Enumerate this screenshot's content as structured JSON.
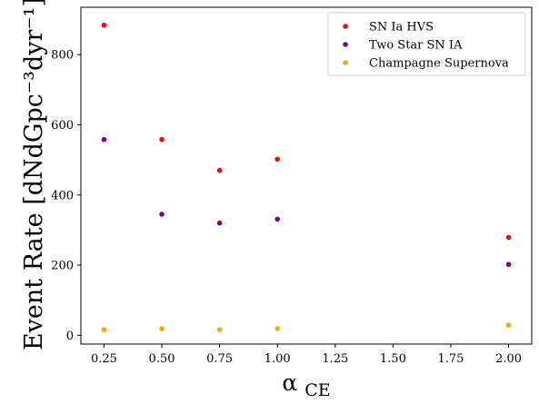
{
  "chart_data": {
    "type": "scatter",
    "title": "",
    "xlabel": "α",
    "xlabel_subscript": "CE",
    "ylabel": "Event Rate [dNdGpc⁻³dyr⁻¹]",
    "xlim": [
      0.15,
      2.1
    ],
    "ylim": [
      -25,
      935
    ],
    "xticks": [
      0.25,
      0.5,
      0.75,
      1.0,
      1.25,
      1.5,
      1.75,
      2.0
    ],
    "xtick_labels": [
      "0.25",
      "0.50",
      "0.75",
      "1.00",
      "1.25",
      "1.50",
      "1.75",
      "2.00"
    ],
    "yticks": [
      0,
      200,
      400,
      600,
      800
    ],
    "ytick_labels": [
      "0",
      "200",
      "400",
      "600",
      "800"
    ],
    "grid": false,
    "legend_position": "top-right",
    "series": [
      {
        "name": "SN Ia HVS",
        "color": "#ff0000",
        "x": [
          0.25,
          0.5,
          0.75,
          1.0,
          2.0
        ],
        "y": [
          884,
          558,
          470,
          502,
          279
        ]
      },
      {
        "name": "Two Star SN IA",
        "color": "#800080",
        "x": [
          0.25,
          0.5,
          0.75,
          1.0,
          2.0
        ],
        "y": [
          558,
          345,
          320,
          331,
          202
        ]
      },
      {
        "name": "Champagne Supernova",
        "color": "#ffa500",
        "x": [
          0.25,
          0.5,
          0.75,
          1.0,
          2.0
        ],
        "y": [
          16,
          19,
          16,
          19,
          29
        ]
      }
    ]
  }
}
